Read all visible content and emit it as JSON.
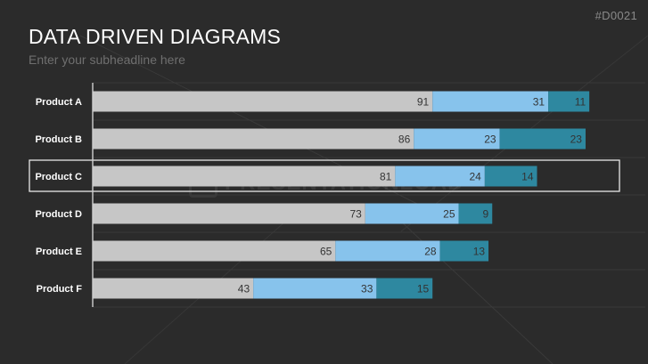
{
  "slide": {
    "code": "#D0021",
    "title": "DATA DRIVEN DIAGRAMS",
    "subtitle": "Enter your subheadline here",
    "watermark": "PRESENTATIONLOAD"
  },
  "colors": {
    "background": "#2b2b2b",
    "series1": "#c6c6c6",
    "series2": "#87c3ec",
    "series3": "#2e88a0",
    "gridline": "#3a3a3a",
    "axis": "#d0d0d0",
    "highlight_border": "#e8e8e8",
    "category_label": "#ffffff",
    "value_label": "#333333"
  },
  "chart_data": {
    "type": "bar",
    "orientation": "horizontal",
    "stacked": true,
    "categories": [
      "Product A",
      "Product B",
      "Product C",
      "Product D",
      "Product E",
      "Product F"
    ],
    "series": [
      {
        "values": [
          91,
          86,
          81,
          73,
          65,
          43
        ]
      },
      {
        "values": [
          31,
          23,
          24,
          25,
          28,
          33
        ]
      },
      {
        "values": [
          11,
          23,
          14,
          9,
          13,
          15
        ]
      }
    ],
    "xlim": [
      0,
      148
    ],
    "grid": true,
    "legend": "none",
    "highlighted_category": "Product C"
  }
}
